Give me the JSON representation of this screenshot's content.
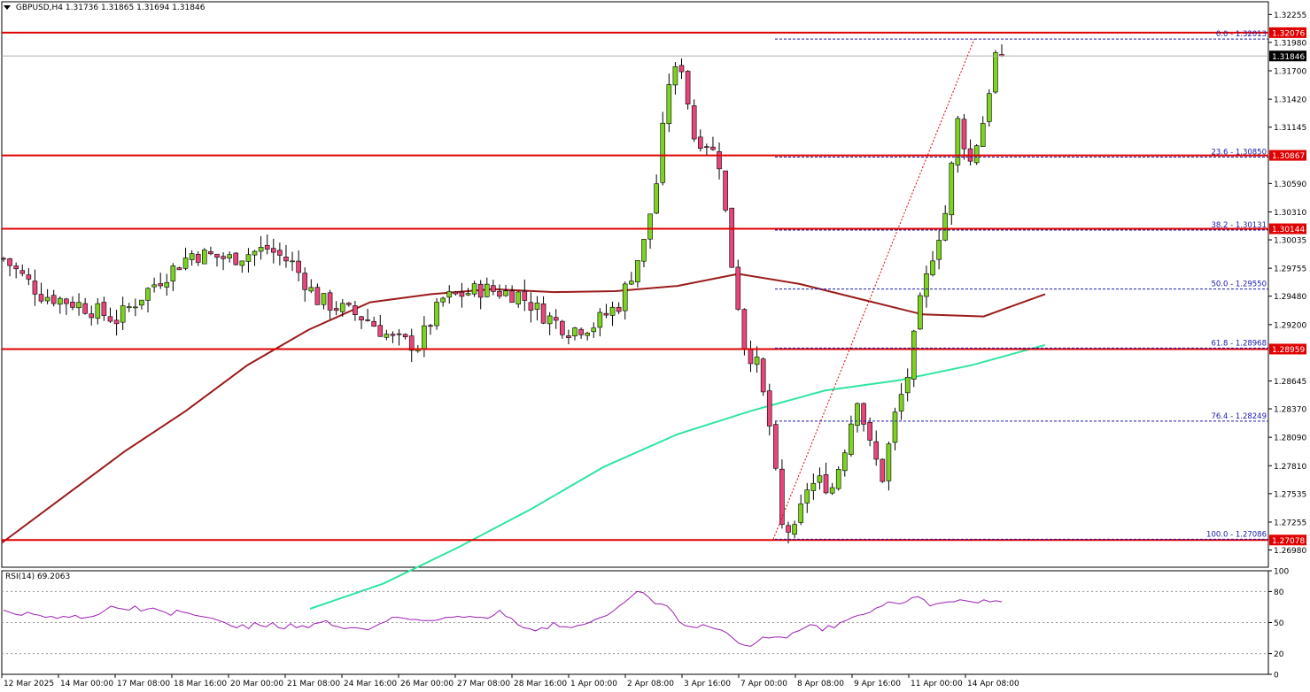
{
  "header": {
    "symbol": "GBPUSD,H4",
    "open": "1.31736",
    "high": "1.31865",
    "low": "1.31694",
    "close": "1.31846"
  },
  "rsi_label": "RSI(14) 69.2063",
  "colors": {
    "bull": "#7ED321",
    "bear": "#E8457A",
    "wick": "#000000",
    "level_line": "#E00000",
    "ma_slow": "#9B1B1B",
    "ma_fast": "#2EE6A0",
    "fib": "#1A1AB0",
    "rsi": "#9B1FB5",
    "trend": "#E00000"
  },
  "chart_data": {
    "type": "candlestick",
    "title": "GBPUSD,H4",
    "ylim": [
      1.2681,
      1.3238
    ],
    "price_ticks": [
      "1.32255",
      "1.31980",
      "1.31700",
      "1.31420",
      "1.31145",
      "1.30590",
      "1.30310",
      "1.30035",
      "1.29755",
      "1.29480",
      "1.29200",
      "1.28645",
      "1.28370",
      "1.28090",
      "1.27810",
      "1.27535",
      "1.27255",
      "1.26980"
    ],
    "level_labels": [
      {
        "price": 1.32076,
        "label": "1.32076"
      },
      {
        "price": 1.30867,
        "label": "1.30867"
      },
      {
        "price": 1.30144,
        "label": "1.30144"
      },
      {
        "price": 1.28959,
        "label": "1.28959"
      },
      {
        "price": 1.27078,
        "label": "1.27078"
      }
    ],
    "current_price": {
      "price": 1.31846,
      "label": "1.31846"
    },
    "fib_levels": [
      {
        "price": 1.32013,
        "label": "0.0 - 1.32013"
      },
      {
        "price": 1.3085,
        "label": "23.6 - 1.30850"
      },
      {
        "price": 1.30131,
        "label": "38.2 - 1.30131"
      },
      {
        "price": 1.2955,
        "label": "50.0 - 1.29550"
      },
      {
        "price": 1.28968,
        "label": "61.8 - 1.28968"
      },
      {
        "price": 1.28249,
        "label": "76.4 - 1.28249"
      },
      {
        "price": 1.27086,
        "label": "100.0 - 1.27086"
      }
    ],
    "x_labels": [
      "12 Mar 2025",
      "14 Mar 00:00",
      "17 Mar 08:00",
      "18 Mar 16:00",
      "20 Mar 00:00",
      "21 Mar 08:00",
      "24 Mar 16:00",
      "26 Mar 00:00",
      "27 Mar 08:00",
      "28 Mar 16:00",
      "1 Apr 00:00",
      "2 Apr 08:00",
      "3 Apr 16:00",
      "7 Apr 00:00",
      "8 Apr 08:00",
      "9 Apr 16:00",
      "11 Apr 00:00",
      "14 Apr 08:00"
    ],
    "ma_slow": [
      1.2705,
      1.275,
      1.2795,
      1.2835,
      1.288,
      1.2915,
      1.2942,
      1.295,
      1.2955,
      1.2952,
      1.2953,
      1.2958,
      1.297,
      1.296,
      1.2945,
      1.293,
      1.2928,
      1.295
    ],
    "ma_fast": [
      1.264,
      1.2665,
      1.27,
      1.2738,
      1.278,
      1.2812,
      1.2835,
      1.2855,
      1.2865,
      1.288,
      1.29
    ],
    "rsi_ticks": [
      "100",
      "80",
      "50",
      "20",
      "0"
    ],
    "rsi_levels": [
      80,
      50,
      20
    ],
    "rsi_values": [
      62,
      60,
      58,
      57,
      60,
      58,
      57,
      55,
      56,
      54,
      56,
      55,
      57,
      54,
      55,
      56,
      58,
      62,
      66,
      64,
      63,
      62,
      66,
      61,
      63,
      64,
      62,
      60,
      57,
      62,
      60,
      59,
      57,
      56,
      55,
      54,
      52,
      50,
      47,
      45,
      48,
      44,
      50,
      47,
      46,
      50,
      45,
      44,
      49,
      45,
      47,
      45,
      49,
      50,
      52,
      47,
      46,
      44,
      45,
      45,
      44,
      43,
      46,
      49,
      51,
      55,
      55,
      54,
      53,
      53,
      52,
      52,
      52,
      53,
      55,
      55,
      56,
      55,
      56,
      55,
      55,
      54,
      57,
      62,
      56,
      54,
      48,
      45,
      44,
      42,
      45,
      44,
      50,
      46,
      46,
      45,
      47,
      48,
      50,
      53,
      55,
      57,
      61,
      66,
      70,
      75,
      80,
      79,
      74,
      68,
      68,
      66,
      60,
      51,
      47,
      46,
      45,
      48,
      46,
      44,
      43,
      40,
      35,
      30,
      28,
      27,
      31,
      36,
      35,
      36,
      36,
      35,
      40,
      42,
      45,
      48,
      47,
      42,
      47,
      45,
      50,
      52,
      55,
      57,
      58,
      60,
      64,
      66,
      70,
      69,
      68,
      70,
      74,
      75,
      72,
      66,
      68,
      69,
      70,
      70,
      72,
      71,
      70,
      69,
      72,
      70,
      71,
      70
    ]
  }
}
